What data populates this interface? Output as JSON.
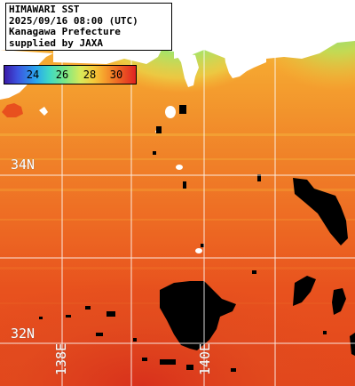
{
  "title": {
    "line1": "HIMAWARI SST",
    "line2": "2025/09/16 08:00 (UTC)",
    "line3": "Kanagawa Prefecture",
    "line4": "supplied by JAXA"
  },
  "colorbar": {
    "ticks": [
      {
        "label": "24",
        "value": 24
      },
      {
        "label": "26",
        "value": 26
      },
      {
        "label": "28",
        "value": 28
      },
      {
        "label": "30",
        "value": 30
      }
    ],
    "range": [
      22.5,
      31.2
    ],
    "palette": [
      "#3a1aa8",
      "#3c54e0",
      "#2aa6ee",
      "#3ed8c6",
      "#7ae886",
      "#d8ea5a",
      "#f5c93a",
      "#f6a02c",
      "#ef6a24",
      "#e02222"
    ]
  },
  "grid": {
    "latitudes": [
      {
        "label": "34N",
        "value": 34
      },
      {
        "label": "32N",
        "value": 32
      }
    ],
    "longitudes": [
      {
        "label": "138E",
        "value": 138
      },
      {
        "label": "140E",
        "value": 140
      }
    ]
  },
  "colors": {
    "land": "#ffffff",
    "cloud_mask": "#000000",
    "grid_line": "#ffffff"
  }
}
